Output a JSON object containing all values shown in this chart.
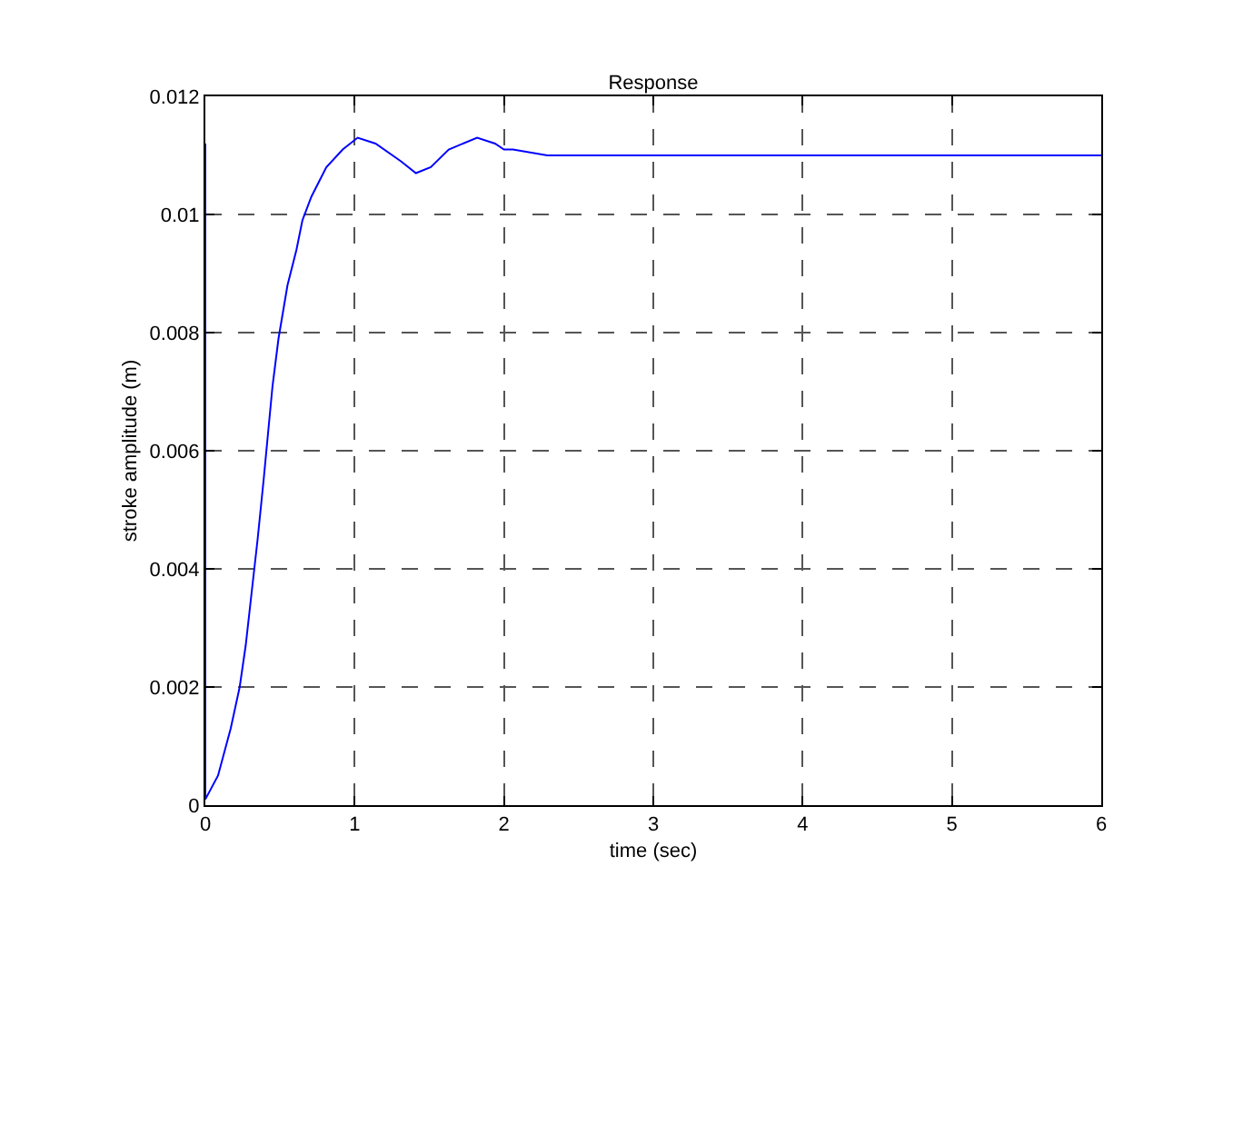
{
  "chart_data": {
    "type": "line",
    "title": "Response",
    "xlabel": "time (sec)",
    "ylabel": "stroke amplitude (m)",
    "x": [
      0,
      0,
      0.085,
      0.17,
      0.23,
      0.27,
      0.31,
      0.35,
      0.39,
      0.42,
      0.45,
      0.49,
      0.55,
      0.61,
      0.65,
      0.71,
      0.81,
      0.92,
      1.02,
      1.14,
      1.31,
      1.41,
      1.51,
      1.63,
      1.82,
      1.94,
      2.0,
      2.06,
      2.29,
      3,
      4,
      5,
      6
    ],
    "series": [
      {
        "color": "#0000ff",
        "values": [
          0.0112,
          0.0001,
          0.0005,
          0.0013,
          0.002,
          0.0027,
          0.0036,
          0.0045,
          0.0055,
          0.0063,
          0.0071,
          0.0079,
          0.0088,
          0.0094,
          0.0099,
          0.0103,
          0.0108,
          0.0111,
          0.0113,
          0.0112,
          0.0109,
          0.0107,
          0.0108,
          0.0111,
          0.0113,
          0.0112,
          0.0111,
          0.0111,
          0.011,
          0.011,
          0.011,
          0.011,
          0.011
        ]
      }
    ],
    "xlim": [
      0,
      6
    ],
    "xticks": [
      0,
      1,
      2,
      3,
      4,
      5,
      6
    ],
    "ylim": [
      0,
      0.012
    ],
    "yticks": [
      0,
      0.002,
      0.004,
      0.006,
      0.008,
      0.01,
      0.012
    ],
    "grid": true,
    "line_style": "solid",
    "marker": "none",
    "legend": false
  }
}
